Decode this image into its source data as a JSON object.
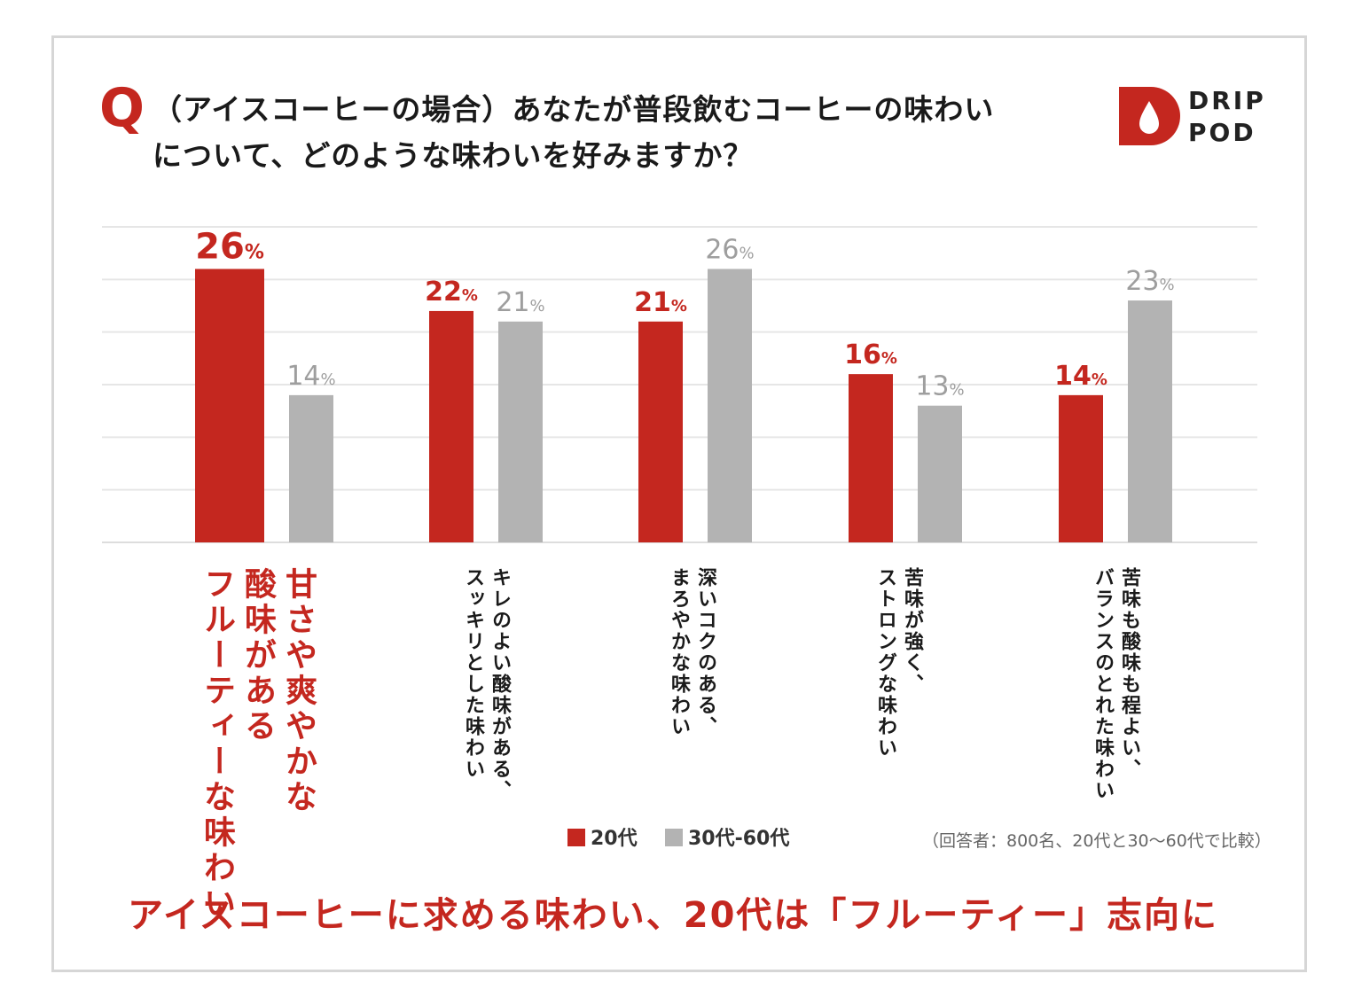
{
  "question": {
    "mark": "Q",
    "line1": "（アイスコーヒーの場合）あなたが普段飲むコーヒーの味わい",
    "line2": "について、どのような味わいを好みますか？"
  },
  "logo": {
    "line1": "DRIP",
    "line2": "POD"
  },
  "chart_data": {
    "type": "bar",
    "title": "（アイスコーヒーの場合）あなたが普段飲むコーヒーの味わいについて、どのような味わいを好みますか？",
    "categories": [
      "甘さや爽やかな\n酸味がある\nフルーティーな味わい",
      "キレのよい酸味がある、\nスッキリとした味わい",
      "深いコクのある、\nまろやかな味わい",
      "苦味が強く、\nストロングな味わい",
      "苦味も酸味も程よい、\nバランスのとれた味わい"
    ],
    "series": [
      {
        "name": "20代",
        "values": [
          26,
          22,
          21,
          16,
          14
        ],
        "color": "#c4271f"
      },
      {
        "name": "30代-60代",
        "values": [
          14,
          21,
          26,
          13,
          23
        ],
        "color": "#b3b3b3"
      }
    ],
    "unit": "%",
    "ylim": [
      0,
      30
    ],
    "grid": true,
    "legend_position": "bottom",
    "highlight_category": 0
  },
  "note": "（回答者：800名、20代と30〜60代で比較）",
  "headline": "アイスコーヒーに求める味わい、20代は「フルーティー」志向に"
}
